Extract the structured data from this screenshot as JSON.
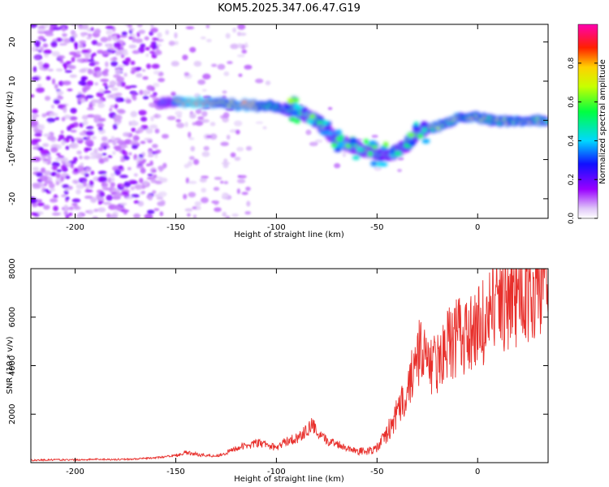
{
  "title": "KOM5.2025.347.06.47.G19",
  "chart_data": [
    {
      "type": "heatmap",
      "name": "spectrogram",
      "xlabel": "Height of straight line (km)",
      "ylabel": "Frequency (Hz)",
      "xlim": [
        -222,
        35
      ],
      "ylim": [
        -25,
        24.5
      ],
      "xticks": [
        -200,
        -150,
        -100,
        -50,
        0
      ],
      "yticks": [
        -20,
        -10,
        0,
        10,
        20
      ],
      "ridge": {
        "x": [
          -155,
          -140,
          -125,
          -110,
          -100,
          -90,
          -80,
          -70,
          -60,
          -50,
          -40,
          -35,
          -30,
          -20,
          -10,
          0,
          10,
          20,
          35
        ],
        "y": [
          4.5,
          4.5,
          4.2,
          3.8,
          3.5,
          2.5,
          0,
          -5,
          -7,
          -9,
          -8,
          -6,
          -3,
          -1.5,
          0.5,
          0.8,
          -0.5,
          0,
          0
        ]
      },
      "colorbar": {
        "label": "Normalized spectral amplitude",
        "range": [
          0,
          1
        ],
        "ticks": [
          0.0,
          0.2,
          0.4,
          0.6,
          0.8
        ],
        "tick_labels": [
          "0.0",
          "0.2",
          "0.4",
          "0.6",
          "0.8"
        ]
      }
    },
    {
      "type": "line",
      "name": "snr",
      "xlabel": "Height of straight line (km)",
      "ylabel": "SNR (10 * v/v)",
      "xlim": [
        -222,
        35
      ],
      "ylim": [
        0,
        8000
      ],
      "xticks": [
        -200,
        -150,
        -100,
        -50,
        0
      ],
      "yticks": [
        2000,
        4000,
        6000,
        8000
      ],
      "color": "#e8302c",
      "series": [
        {
          "name": "SNR",
          "x": [
            -222,
            -210,
            -200,
            -190,
            -180,
            -170,
            -160,
            -155,
            -150,
            -145,
            -140,
            -135,
            -130,
            -125,
            -120,
            -115,
            -110,
            -105,
            -100,
            -95,
            -90,
            -85,
            -82,
            -80,
            -75,
            -70,
            -65,
            -60,
            -55,
            -50,
            -45,
            -40,
            -35,
            -30,
            -28,
            -25,
            -20,
            -15,
            -10,
            -5,
            0,
            5,
            10,
            15,
            20,
            25,
            30,
            35
          ],
          "y": [
            100,
            120,
            110,
            140,
            130,
            150,
            200,
            250,
            300,
            420,
            350,
            300,
            280,
            400,
            600,
            700,
            800,
            750,
            600,
            900,
            1000,
            1300,
            1600,
            1200,
            900,
            800,
            600,
            500,
            450,
            600,
            1200,
            2000,
            3000,
            4000,
            5000,
            3800,
            4200,
            4800,
            5200,
            5000,
            5600,
            6000,
            6600,
            6800,
            7000,
            7200,
            7400,
            7800
          ]
        }
      ]
    }
  ]
}
